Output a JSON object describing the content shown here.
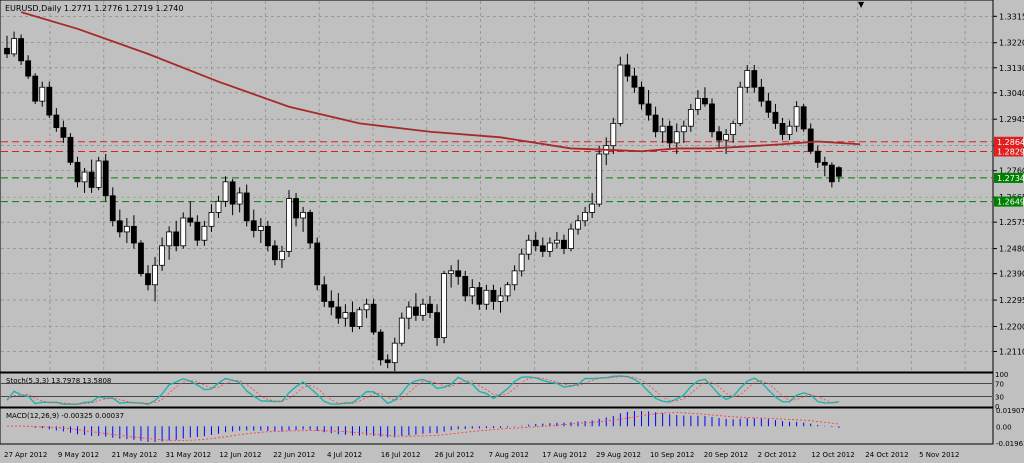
{
  "header": {
    "title": "EURUSD,Daily  1.2771 1.2776 1.2719 1.2740",
    "scroll_marker": "▼"
  },
  "colors": {
    "background": "#c0c0c0",
    "grid": "#808080",
    "candle": "#000000",
    "ma_line": "#a52a2a",
    "resistance": "#e02020",
    "support": "#008000",
    "stoch_main": "#20b2aa",
    "stoch_signal": "#ff4040",
    "macd_hist": "#0000ff",
    "macd_signal": "#ff4040"
  },
  "price_axis": {
    "ticks": [
      "1.3315",
      "1.3220",
      "1.3130",
      "1.3040",
      "1.2945",
      "1.2850",
      "1.2760",
      "1.2665",
      "1.2575",
      "1.2480",
      "1.2390",
      "1.2295",
      "1.2200",
      "1.2110"
    ]
  },
  "levels": [
    {
      "label": "1.2864",
      "kind": "resistance"
    },
    {
      "label": "1.2829",
      "kind": "resistance"
    },
    {
      "label": "1.2734",
      "kind": "support"
    },
    {
      "label": "1.2649",
      "kind": "support"
    }
  ],
  "stoch_panel": {
    "title": "Stoch(5,3,3) 13.7978 13.5808",
    "ticks": [
      "100",
      "70",
      "30",
      "0"
    ]
  },
  "macd_panel": {
    "title": "MACD(12,26,9) -0.00325 0.00037",
    "ticks": [
      "0.01907",
      "0.00",
      "-0.01961"
    ]
  },
  "time_axis": {
    "ticks": [
      "27 Apr 2012",
      "9 May 2012",
      "21 May 2012",
      "31 May 2012",
      "12 Jun 2012",
      "22 Jun 2012",
      "4 Jul 2012",
      "16 Jul 2012",
      "26 Jul 2012",
      "7 Aug 2012",
      "17 Aug 2012",
      "29 Aug 2012",
      "10 Sep 2012",
      "20 Sep 2012",
      "2 Oct 2012",
      "12 Oct 2012",
      "24 Oct 2012",
      "5 Nov 2012"
    ]
  },
  "chart_data": {
    "type": "candlestick",
    "symbol": "EURUSD",
    "timeframe": "Daily",
    "ylim": [
      1.204,
      1.337
    ],
    "candles": [
      [
        1.32,
        1.3245,
        1.3165,
        1.318
      ],
      [
        1.318,
        1.326,
        1.317,
        1.3235
      ],
      [
        1.3235,
        1.325,
        1.314,
        1.3155
      ],
      [
        1.3155,
        1.3175,
        1.309,
        1.31
      ],
      [
        1.31,
        1.311,
        1.3,
        1.301
      ],
      [
        1.301,
        1.308,
        1.299,
        1.306
      ],
      [
        1.306,
        1.308,
        1.295,
        1.296
      ],
      [
        1.296,
        1.2985,
        1.29,
        1.2915
      ],
      [
        1.2915,
        1.294,
        1.286,
        1.288
      ],
      [
        1.288,
        1.2895,
        1.278,
        1.279
      ],
      [
        1.279,
        1.281,
        1.27,
        1.272
      ],
      [
        1.272,
        1.277,
        1.268,
        1.2755
      ],
      [
        1.2755,
        1.28,
        1.268,
        1.27
      ],
      [
        1.27,
        1.281,
        1.269,
        1.2795
      ],
      [
        1.2795,
        1.282,
        1.265,
        1.267
      ],
      [
        1.267,
        1.27,
        1.256,
        1.258
      ],
      [
        1.258,
        1.262,
        1.252,
        1.254
      ],
      [
        1.254,
        1.259,
        1.25,
        1.256
      ],
      [
        1.256,
        1.26,
        1.248,
        1.25
      ],
      [
        1.25,
        1.251,
        1.238,
        1.239
      ],
      [
        1.239,
        1.242,
        1.233,
        1.235
      ],
      [
        1.235,
        1.245,
        1.229,
        1.242
      ],
      [
        1.242,
        1.252,
        1.24,
        1.249
      ],
      [
        1.249,
        1.256,
        1.244,
        1.254
      ],
      [
        1.254,
        1.258,
        1.247,
        1.249
      ],
      [
        1.249,
        1.261,
        1.248,
        1.259
      ],
      [
        1.259,
        1.265,
        1.256,
        1.2575
      ],
      [
        1.2575,
        1.26,
        1.249,
        1.251
      ],
      [
        1.251,
        1.258,
        1.249,
        1.256
      ],
      [
        1.256,
        1.264,
        1.254,
        1.261
      ],
      [
        1.261,
        1.267,
        1.259,
        1.265
      ],
      [
        1.265,
        1.274,
        1.263,
        1.272
      ],
      [
        1.272,
        1.273,
        1.26,
        1.264
      ],
      [
        1.264,
        1.27,
        1.261,
        1.268
      ],
      [
        1.268,
        1.271,
        1.256,
        1.258
      ],
      [
        1.258,
        1.262,
        1.252,
        1.2545
      ],
      [
        1.2545,
        1.259,
        1.25,
        1.256
      ],
      [
        1.256,
        1.258,
        1.247,
        1.249
      ],
      [
        1.249,
        1.251,
        1.242,
        1.244
      ],
      [
        1.244,
        1.249,
        1.241,
        1.247
      ],
      [
        1.247,
        1.269,
        1.245,
        1.266
      ],
      [
        1.266,
        1.268,
        1.256,
        1.259
      ],
      [
        1.259,
        1.263,
        1.254,
        1.261
      ],
      [
        1.261,
        1.262,
        1.248,
        1.25
      ],
      [
        1.25,
        1.252,
        1.233,
        1.235
      ],
      [
        1.235,
        1.238,
        1.227,
        1.229
      ],
      [
        1.229,
        1.233,
        1.224,
        1.227
      ],
      [
        1.227,
        1.232,
        1.221,
        1.223
      ],
      [
        1.223,
        1.228,
        1.22,
        1.225
      ],
      [
        1.225,
        1.229,
        1.218,
        1.22
      ],
      [
        1.22,
        1.227,
        1.219,
        1.226
      ],
      [
        1.226,
        1.23,
        1.223,
        1.228
      ],
      [
        1.228,
        1.23,
        1.217,
        1.218
      ],
      [
        1.218,
        1.219,
        1.206,
        1.208
      ],
      [
        1.208,
        1.21,
        1.205,
        1.207
      ],
      [
        1.207,
        1.216,
        1.204,
        1.214
      ],
      [
        1.214,
        1.225,
        1.213,
        1.223
      ],
      [
        1.223,
        1.229,
        1.219,
        1.227
      ],
      [
        1.227,
        1.232,
        1.222,
        1.224
      ],
      [
        1.224,
        1.23,
        1.222,
        1.228
      ],
      [
        1.228,
        1.231,
        1.223,
        1.225
      ],
      [
        1.225,
        1.228,
        1.213,
        1.216
      ],
      [
        1.216,
        1.24,
        1.214,
        1.239
      ],
      [
        1.239,
        1.242,
        1.234,
        1.24
      ],
      [
        1.24,
        1.244,
        1.235,
        1.238
      ],
      [
        1.238,
        1.24,
        1.229,
        1.231
      ],
      [
        1.231,
        1.237,
        1.228,
        1.234
      ],
      [
        1.234,
        1.236,
        1.226,
        1.228
      ],
      [
        1.228,
        1.235,
        1.226,
        1.233
      ],
      [
        1.233,
        1.235,
        1.226,
        1.229
      ],
      [
        1.229,
        1.234,
        1.225,
        1.231
      ],
      [
        1.231,
        1.236,
        1.229,
        1.235
      ],
      [
        1.235,
        1.242,
        1.233,
        1.24
      ],
      [
        1.24,
        1.248,
        1.238,
        1.246
      ],
      [
        1.246,
        1.253,
        1.244,
        1.251
      ],
      [
        1.251,
        1.254,
        1.247,
        1.249
      ],
      [
        1.249,
        1.252,
        1.245,
        1.247
      ],
      [
        1.247,
        1.252,
        1.245,
        1.25
      ],
      [
        1.25,
        1.254,
        1.248,
        1.251
      ],
      [
        1.251,
        1.253,
        1.246,
        1.248
      ],
      [
        1.248,
        1.257,
        1.247,
        1.255
      ],
      [
        1.255,
        1.26,
        1.253,
        1.258
      ],
      [
        1.258,
        1.263,
        1.256,
        1.261
      ],
      [
        1.261,
        1.268,
        1.259,
        1.264
      ],
      [
        1.264,
        1.285,
        1.263,
        1.282
      ],
      [
        1.282,
        1.288,
        1.278,
        1.285
      ],
      [
        1.285,
        1.295,
        1.282,
        1.293
      ],
      [
        1.293,
        1.317,
        1.292,
        1.314
      ],
      [
        1.314,
        1.318,
        1.308,
        1.31
      ],
      [
        1.31,
        1.313,
        1.304,
        1.306
      ],
      [
        1.306,
        1.308,
        1.298,
        1.3
      ],
      [
        1.3,
        1.305,
        1.294,
        1.296
      ],
      [
        1.296,
        1.299,
        1.288,
        1.29
      ],
      [
        1.29,
        1.295,
        1.286,
        1.292
      ],
      [
        1.292,
        1.294,
        1.284,
        1.286
      ],
      [
        1.286,
        1.293,
        1.282,
        1.29
      ],
      [
        1.29,
        1.294,
        1.286,
        1.292
      ],
      [
        1.292,
        1.3,
        1.29,
        1.298
      ],
      [
        1.298,
        1.305,
        1.296,
        1.302
      ],
      [
        1.302,
        1.306,
        1.299,
        1.3
      ],
      [
        1.3,
        1.302,
        1.288,
        1.29
      ],
      [
        1.29,
        1.292,
        1.284,
        1.287
      ],
      [
        1.287,
        1.291,
        1.282,
        1.289
      ],
      [
        1.289,
        1.294,
        1.286,
        1.293
      ],
      [
        1.293,
        1.308,
        1.292,
        1.306
      ],
      [
        1.306,
        1.314,
        1.304,
        1.312
      ],
      [
        1.312,
        1.314,
        1.304,
        1.306
      ],
      [
        1.306,
        1.309,
        1.299,
        1.301
      ],
      [
        1.301,
        1.304,
        1.295,
        1.297
      ],
      [
        1.297,
        1.3,
        1.291,
        1.293
      ],
      [
        1.293,
        1.295,
        1.287,
        1.289
      ],
      [
        1.289,
        1.294,
        1.287,
        1.292
      ],
      [
        1.292,
        1.301,
        1.29,
        1.299
      ],
      [
        1.299,
        1.3,
        1.29,
        1.291
      ],
      [
        1.291,
        1.293,
        1.282,
        1.283
      ],
      [
        1.283,
        1.285,
        1.277,
        1.279
      ],
      [
        1.279,
        1.281,
        1.274,
        1.278
      ],
      [
        1.278,
        1.279,
        1.27,
        1.272
      ],
      [
        1.2771,
        1.2776,
        1.2719,
        1.274
      ]
    ],
    "moving_average": [
      [
        2,
        1.333
      ],
      [
        10,
        1.327
      ],
      [
        20,
        1.318
      ],
      [
        30,
        1.308
      ],
      [
        40,
        1.299
      ],
      [
        50,
        1.293
      ],
      [
        60,
        1.29
      ],
      [
        70,
        1.288
      ],
      [
        80,
        1.284
      ],
      [
        85,
        1.2835
      ],
      [
        90,
        1.283
      ],
      [
        95,
        1.284
      ],
      [
        100,
        1.284
      ],
      [
        110,
        1.2855
      ],
      [
        115,
        1.2865
      ],
      [
        121,
        1.2855
      ]
    ],
    "horizontal_levels": [
      1.2864,
      1.2829,
      1.2734,
      1.2649
    ],
    "stochastic": {
      "params": "5,3,3",
      "main": 13.7978,
      "signal": 13.5808,
      "ylim": [
        0,
        100
      ],
      "levels": [
        70,
        30
      ]
    },
    "macd": {
      "params": "12,26,9",
      "main": -0.00325,
      "signal": 0.00037,
      "ylim": [
        -0.01961,
        0.01907
      ]
    }
  }
}
